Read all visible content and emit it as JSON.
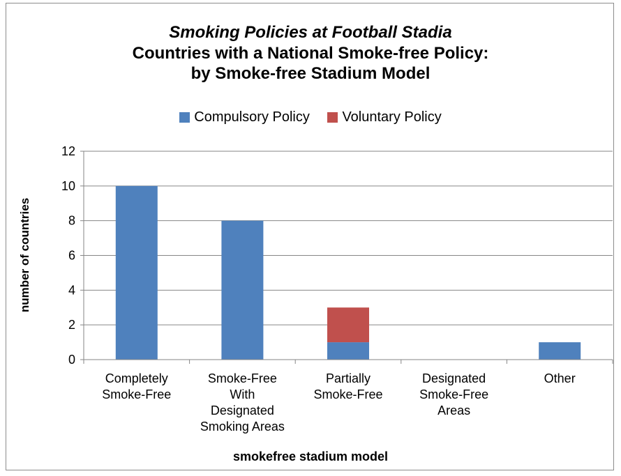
{
  "chart_data": {
    "type": "bar",
    "stacked": true,
    "title_lines": [
      "Smoking Policies at Football Stadia",
      "Countries with a National Smoke-free Policy:",
      "by Smoke-free Stadium Model"
    ],
    "categories": [
      [
        "Completely",
        "Smoke-Free"
      ],
      [
        "Smoke-Free",
        "With",
        "Designated",
        "Smoking Areas"
      ],
      [
        "Partially",
        "Smoke-Free"
      ],
      [
        "Designated",
        "Smoke-Free",
        "Areas"
      ],
      [
        "Other"
      ]
    ],
    "series": [
      {
        "name": "Compulsory Policy",
        "color": "#4f81bd",
        "values": [
          10,
          8,
          1,
          0,
          1
        ]
      },
      {
        "name": "Voluntary Policy",
        "color": "#c0504d",
        "values": [
          0,
          0,
          2,
          0,
          0
        ]
      }
    ],
    "xlabel": "smokefree stadium model",
    "ylabel": "number of countries",
    "ylim": [
      0,
      12
    ],
    "yticks": [
      0,
      2,
      4,
      6,
      8,
      10,
      12
    ],
    "grid": true,
    "legend_position": "top"
  }
}
